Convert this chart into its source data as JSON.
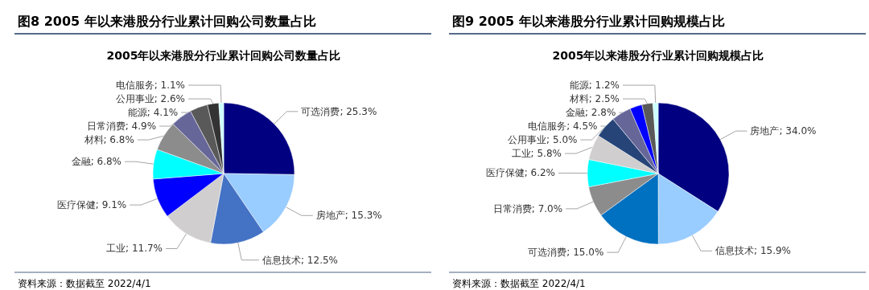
{
  "chart_data": [
    {
      "type": "pie",
      "title": "图8  2005 年以来港股分行业累计回购公司数量占比",
      "subtitle": "2005年以来港股分行业累计回购公司数量占比",
      "categories": [
        "可选消费",
        "房地产",
        "信息技术",
        "工业",
        "医疗保健",
        "金融",
        "材料",
        "日常消费",
        "能源",
        "公用事业",
        "电信服务"
      ],
      "values": [
        25.3,
        15.3,
        12.5,
        11.7,
        9.1,
        6.8,
        6.8,
        4.9,
        4.1,
        2.6,
        1.1
      ],
      "colors": [
        "#000080",
        "#99ccff",
        "#4472c4",
        "#d0cece",
        "#0000ff",
        "#00ffff",
        "#8c8c8c",
        "#666699",
        "#595959",
        "#333333",
        "#ccffff"
      ],
      "value_labels": [
        "25.3%",
        "15.3%",
        "12.5%",
        "11.7%",
        "9.1%",
        "6.8%",
        "6.8%",
        "4.9%",
        "4.1%",
        "2.6%",
        "1.1%"
      ],
      "annotations": [
        "资料来源：数据截至 2022/4/1"
      ]
    },
    {
      "type": "pie",
      "title": "图9  2005 年以来港股分行业累计回购规模占比",
      "subtitle": "2005年以来港股分行业累计回购规模占比",
      "categories": [
        "房地产",
        "信息技术",
        "可选消费",
        "日常消费",
        "医疗保健",
        "工业",
        "公用事业",
        "电信服务",
        "金融",
        "材料",
        "能源"
      ],
      "values": [
        34.0,
        15.9,
        15.0,
        7.0,
        6.2,
        5.8,
        5.0,
        4.5,
        2.8,
        2.5,
        1.2
      ],
      "colors": [
        "#000080",
        "#99ccff",
        "#0070c0",
        "#8c8c8c",
        "#00ffff",
        "#d0cece",
        "#264478",
        "#666699",
        "#0000ff",
        "#595959",
        "#ccffff"
      ],
      "value_labels": [
        "34.0%",
        "15.9%",
        "15.0%",
        "7.0%",
        "6.2%",
        "5.8%",
        "5.0%",
        "4.5%",
        "2.8%",
        "2.5%",
        "1.2%"
      ],
      "annotations": [
        "资料来源：数据截至 2022/4/1"
      ]
    }
  ]
}
